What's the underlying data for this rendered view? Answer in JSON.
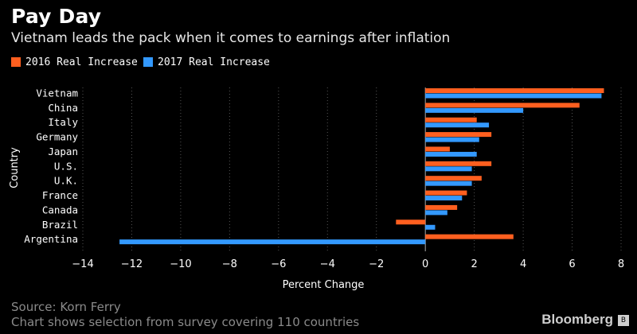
{
  "header": {
    "title": "Pay Day",
    "subtitle": "Vietnam leads the pack when it comes to earnings after inflation"
  },
  "legend": [
    {
      "label": "2016 Real Increase",
      "color": "#ff5f1f"
    },
    {
      "label": "2017 Real Increase",
      "color": "#3399ff"
    }
  ],
  "chart_data": {
    "type": "bar",
    "orientation": "horizontal",
    "title": "Pay Day",
    "subtitle": "Vietnam leads the pack when it comes to earnings after inflation",
    "categories": [
      "Vietnam",
      "China",
      "Italy",
      "Germany",
      "Japan",
      "U.S.",
      "U.K.",
      "France",
      "Canada",
      "Brazil",
      "Argentina"
    ],
    "series": [
      {
        "name": "2016 Real Increase",
        "color": "#ff5f1f",
        "values": [
          7.3,
          6.3,
          2.1,
          2.7,
          1.0,
          2.7,
          2.3,
          1.7,
          1.3,
          -1.2,
          3.6
        ]
      },
      {
        "name": "2017 Real Increase",
        "color": "#3399ff",
        "values": [
          7.2,
          4.0,
          2.6,
          2.2,
          2.1,
          1.9,
          1.9,
          1.5,
          0.9,
          0.4,
          -12.5
        ]
      }
    ],
    "xlabel": "Percent Change",
    "ylabel": "Country",
    "xlim": [
      -14,
      8
    ],
    "xticks": [
      -14,
      -12,
      -10,
      -8,
      -6,
      -4,
      -2,
      0,
      2,
      4,
      6,
      8
    ],
    "grid": true,
    "legend_position": "top-left"
  },
  "footer": {
    "source": "Source: Korn Ferry",
    "note": "Chart shows selection from survey covering 110 countries",
    "brand": "Bloomberg",
    "brand_icon": "B"
  }
}
